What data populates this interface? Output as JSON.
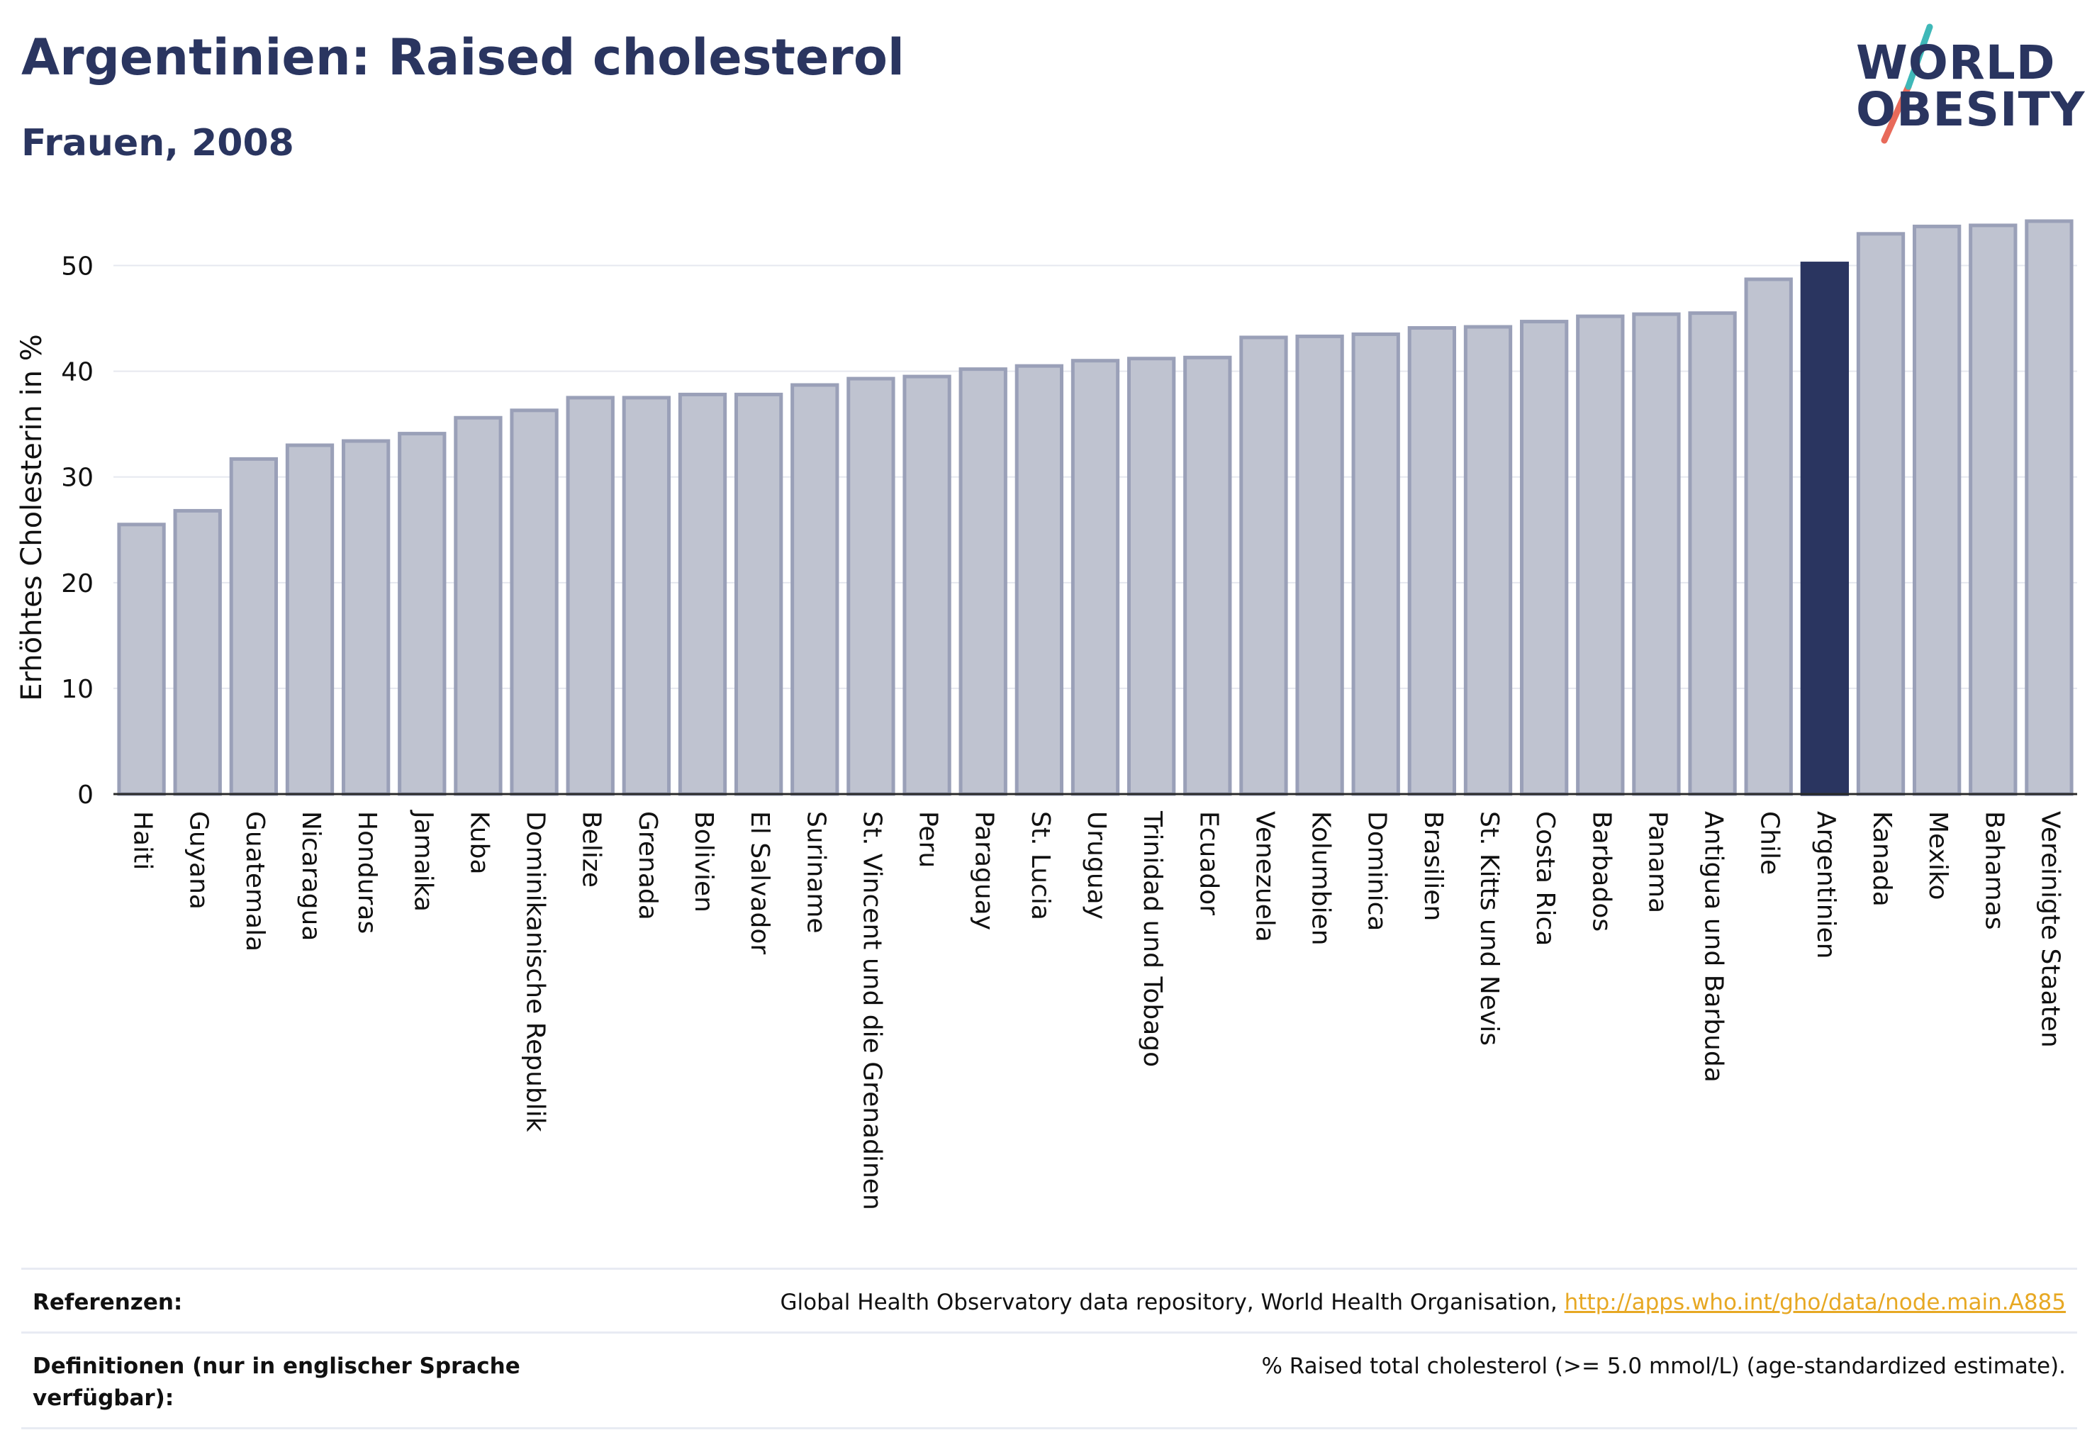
{
  "header": {
    "title": "Argentinien: Raised cholesterol",
    "subtitle": "Frauen, 2008"
  },
  "logo": {
    "line1": "WORLD",
    "line2": "OBESITY",
    "accent_colors": [
      "#3fb8b8",
      "#e86a5a"
    ]
  },
  "colors": {
    "bar_fill": "#bfc3d0",
    "bar_stroke": "#9aa0b8",
    "highlight_fill": "#2a3560",
    "text": "#2a3560",
    "grid": "#e6e8ef",
    "link": "#e7a823"
  },
  "chart_data": {
    "type": "bar",
    "title": "Argentinien: Raised cholesterol",
    "subtitle": "Frauen, 2008",
    "xlabel": "",
    "ylabel": "Erhöhtes Cholesterin in %",
    "ylim": [
      0,
      55
    ],
    "yticks": [
      0,
      10,
      20,
      30,
      40,
      50
    ],
    "grid": true,
    "highlight": "Argentinien",
    "categories": [
      "Haiti",
      "Guyana",
      "Guatemala",
      "Nicaragua",
      "Honduras",
      "Jamaika",
      "Kuba",
      "Dominikanische Republik",
      "Belize",
      "Grenada",
      "Bolivien",
      "El Salvador",
      "Suriname",
      "St. Vincent und die Grenadinen",
      "Peru",
      "Paraguay",
      "St. Lucia",
      "Uruguay",
      "Trinidad und Tobago",
      "Ecuador",
      "Venezuela",
      "Kolumbien",
      "Dominica",
      "Brasilien",
      "St. Kitts und Nevis",
      "Costa Rica",
      "Barbados",
      "Panama",
      "Antigua und Barbuda",
      "Chile",
      "Argentinien",
      "Kanada",
      "Mexiko",
      "Bahamas",
      "Vereinigte Staaten"
    ],
    "values": [
      25.5,
      26.8,
      31.7,
      33.0,
      33.4,
      34.1,
      35.6,
      36.3,
      37.5,
      37.5,
      37.8,
      37.8,
      38.7,
      39.3,
      39.5,
      40.2,
      40.5,
      41.0,
      41.2,
      41.3,
      43.2,
      43.3,
      43.5,
      44.1,
      44.2,
      44.7,
      45.2,
      45.4,
      45.5,
      48.7,
      50.2,
      53.0,
      53.7,
      53.8,
      54.2
    ]
  },
  "references": {
    "label": "Referenzen:",
    "text": "Global Health Observatory data repository, World Health Organisation, ",
    "link": "http://apps.who.int/gho/data/node.main.A885"
  },
  "definitions": {
    "label": "Definitionen (nur in englischer Sprache verfügbar):",
    "text": "% Raised total cholesterol (>= 5.0 mmol/L) (age-standardized estimate)."
  }
}
